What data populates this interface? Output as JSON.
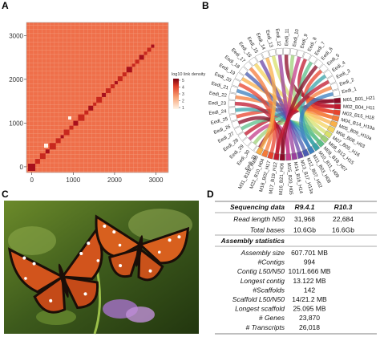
{
  "panels": [
    "A",
    "B",
    "C",
    "D"
  ],
  "heatmap": {
    "xlim": [
      -130,
      3300
    ],
    "ylim": [
      -130,
      3300
    ],
    "xticks": [
      0,
      1000,
      2000,
      3000
    ],
    "yticks": [
      0,
      1000,
      2000,
      3000
    ],
    "colorbar_title": "log10 link density",
    "colorbar_ticks": [
      1,
      2,
      3,
      4,
      5
    ]
  },
  "circos": {
    "eedi_labels": [
      "Eedi_31",
      "Eedi_30",
      "Eedi_29",
      "Eedi_28",
      "Eedi_27",
      "Eedi_26",
      "Eedi_25",
      "Eedi_24",
      "Eedi_23",
      "Eedi_22",
      "Eedi_21",
      "Eedi_20",
      "Eedi_19",
      "Eedi_18",
      "Eedi_17",
      "Eedi_16",
      "Eedi_15",
      "Eedi_14",
      "Eedi_13",
      "Eedi_12",
      "Eedi_11",
      "Eedi_10",
      "Eedi_9",
      "Eedi_8",
      "Eedi_7",
      "Eedi_6",
      "Eedi_5",
      "Eedi_4",
      "Eedi_3",
      "Eedi_2",
      "Eedi_1"
    ],
    "m_labels": [
      "M01_B01_H21",
      "M02_B04_H11",
      "M03_B15_H18",
      "M04_B14_H19a",
      "M05_B09_H10a",
      "M06_B08_H03",
      "M07_B05_H16",
      "M08_B13_H15",
      "M09_B18_H07",
      "M10_B11_H09",
      "M11_B03_H08",
      "M12_B07_H02",
      "M13_B17_H13a",
      "M14_B16_H14",
      "M15_B20_H05",
      "M16_B21_H06",
      "M17_B19_H12",
      "M18_B02_H17",
      "M22_B10_H04",
      "M31_B11b_H19b"
    ]
  },
  "table": {
    "header": [
      "Sequencing data",
      "R9.4.1",
      "R10.3"
    ],
    "seq_rows": [
      [
        "Read length N50",
        "31,968",
        "22,684"
      ],
      [
        "Total bases",
        "10.6Gb",
        "16.6Gb"
      ]
    ],
    "section_title": "Assembly statistics",
    "asm_rows": [
      [
        "Assembly size",
        "607.701 MB"
      ],
      [
        "#Contigs",
        "994"
      ],
      [
        "Contig L50/N50",
        "101/1.666 MB"
      ],
      [
        "Longest contig",
        "13.122 MB"
      ],
      [
        "#Scaffolds",
        "142"
      ],
      [
        "Scaffold L50/N50",
        "14/21.2 MB"
      ],
      [
        "Longest scaffold",
        "25.095 MB"
      ],
      [
        "# Genes",
        "23,870"
      ],
      [
        "# Transcripts",
        "26,018"
      ]
    ]
  }
}
